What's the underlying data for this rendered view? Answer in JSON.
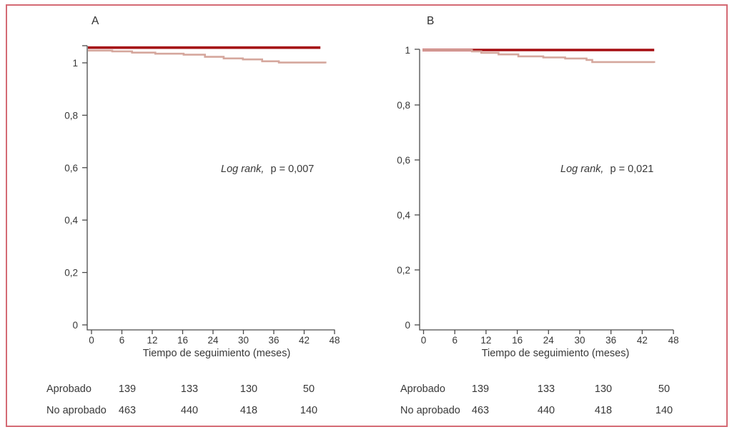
{
  "figure": {
    "background": "#ffffff",
    "border_color": "#d46a74",
    "axis_color": "#4a4a4a",
    "text_color": "#383838"
  },
  "chart_data": [
    {
      "type": "line",
      "subtype": "kaplan-meier-step",
      "panel_label": "A",
      "xlabel": "Tiempo de seguimiento (meses)",
      "ylabel": "",
      "xlim": [
        0,
        48
      ],
      "ylim": [
        0,
        1.06
      ],
      "grid": false,
      "legend_position": "none",
      "x_tick_labels": [
        "0",
        "6",
        "12",
        "16",
        "24",
        "30",
        "36",
        "42",
        "48"
      ],
      "y_tick_labels": [
        "1",
        "0,8",
        "0,6",
        "0,4",
        "0,2",
        "0"
      ],
      "y_tick_values": [
        1,
        0.8,
        0.6,
        0.4,
        0.2,
        0
      ],
      "annotation": {
        "italic": "Log rank,",
        "rest": "p = 0,007"
      },
      "series": [
        {
          "name": "Aprobado",
          "color": "#a50e12",
          "width": 3.6,
          "points": [
            [
              0,
              1.058
            ],
            [
              45.2,
              1.058
            ]
          ]
        },
        {
          "name": "No aprobado",
          "color": "#d5a79d",
          "width": 2.6,
          "points": [
            [
              0,
              1.047
            ],
            [
              4.1,
              1.044
            ],
            [
              8.0,
              1.039
            ],
            [
              12.6,
              1.035
            ],
            [
              18.2,
              1.031
            ],
            [
              22.4,
              1.023
            ],
            [
              26.1,
              1.017
            ],
            [
              29.9,
              1.013
            ],
            [
              33.7,
              1.006
            ],
            [
              37.0,
              1.001
            ],
            [
              46.2,
              0.998
            ]
          ]
        }
      ],
      "risk_table": {
        "rows": [
          {
            "label": "Aprobado",
            "counts": [
              "139",
              "133",
              "130",
              "50"
            ]
          },
          {
            "label": "No aprobado",
            "counts": [
              "463",
              "440",
              "418",
              "140"
            ]
          }
        ]
      }
    },
    {
      "type": "line",
      "subtype": "kaplan-meier-step",
      "panel_label": "B",
      "xlabel": "Tiempo de seguimiento  (meses)",
      "ylabel": "",
      "xlim": [
        0,
        48
      ],
      "ylim": [
        0,
        1
      ],
      "grid": false,
      "legend_position": "none",
      "x_tick_labels": [
        "0",
        "6",
        "12",
        "16",
        "24",
        "30",
        "36",
        "42",
        "48"
      ],
      "y_tick_labels": [
        "1",
        "0,8",
        "0,6",
        "0,4",
        "0,2",
        "0"
      ],
      "y_tick_values": [
        1,
        0.8,
        0.6,
        0.4,
        0.2,
        0
      ],
      "annotation": {
        "italic": "Log rank,",
        "rest": "p = 0,021"
      },
      "series": [
        {
          "name": "Aprobado",
          "color": "#a50e12",
          "width": 3.6,
          "points": [
            [
              0,
              1.0
            ],
            [
              44.3,
              1.0
            ]
          ]
        },
        {
          "name": "No aprobado",
          "color": "#d5a79d",
          "width": 2.6,
          "points": [
            [
              0,
              1.0
            ],
            [
              9.3,
              0.995
            ],
            [
              11.1,
              0.99
            ],
            [
              14.4,
              0.984
            ],
            [
              18.2,
              0.977
            ],
            [
              23.0,
              0.973
            ],
            [
              27.2,
              0.969
            ],
            [
              31.3,
              0.964
            ],
            [
              32.4,
              0.956
            ],
            [
              44.3,
              0.953
            ]
          ]
        }
      ],
      "risk_table": {
        "rows": [
          {
            "label": "Aprobado",
            "counts": [
              "139",
              "133",
              "130",
              "50"
            ]
          },
          {
            "label": "No aprobado",
            "counts": [
              "463",
              "440",
              "418",
              "140"
            ]
          }
        ]
      }
    }
  ]
}
